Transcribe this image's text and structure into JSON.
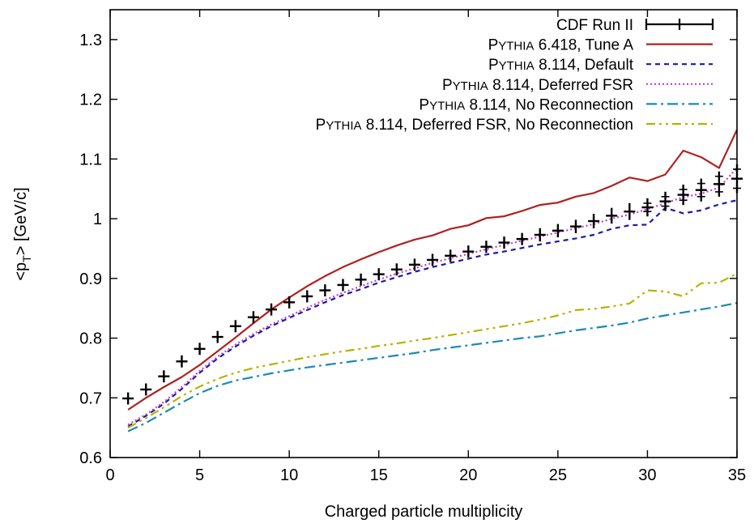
{
  "chart_data": {
    "type": "line",
    "title": "",
    "xlabel": "Charged particle multiplicity",
    "ylabel": {
      "prefix": "<p",
      "sub": "T",
      "suffix": "> [GeV/c]"
    },
    "xlim": [
      0,
      35
    ],
    "ylim": [
      0.6,
      1.35
    ],
    "x_ticks": [
      0,
      5,
      10,
      15,
      20,
      25,
      30,
      35
    ],
    "x_tick_labels": [
      "0",
      "5",
      "10",
      "15",
      "20",
      "25",
      "30",
      "35"
    ],
    "y_ticks": [
      0.6,
      0.7,
      0.8,
      0.9,
      1.0,
      1.1,
      1.2,
      1.3
    ],
    "y_tick_labels": [
      "0.6",
      "0.7",
      "0.8",
      "0.9",
      "1",
      "1.1",
      "1.2",
      "1.3"
    ],
    "grid": false,
    "legend_position": "top-right",
    "x": [
      1,
      2,
      3,
      4,
      5,
      6,
      7,
      8,
      9,
      10,
      11,
      12,
      13,
      14,
      15,
      16,
      17,
      18,
      19,
      20,
      21,
      22,
      23,
      24,
      25,
      26,
      27,
      28,
      29,
      30,
      31,
      32,
      33,
      34,
      35
    ],
    "data_series": {
      "name": "CDF Run II",
      "legend_text": "CDF Run II",
      "color": "#000000",
      "y": [
        0.699,
        0.714,
        0.736,
        0.761,
        0.782,
        0.802,
        0.82,
        0.835,
        0.848,
        0.86,
        0.87,
        0.88,
        0.889,
        0.898,
        0.907,
        0.915,
        0.923,
        0.931,
        0.938,
        0.945,
        0.953,
        0.96,
        0.966,
        0.973,
        0.98,
        0.987,
        0.996,
        1.005,
        1.012,
        1.019,
        1.029,
        1.04,
        1.048,
        1.058,
        1.067
      ],
      "yerr": [
        0.002,
        0.002,
        0.002,
        0.002,
        0.002,
        0.002,
        0.002,
        0.002,
        0.002,
        0.002,
        0.002,
        0.002,
        0.002,
        0.002,
        0.002,
        0.002,
        0.002,
        0.002,
        0.002,
        0.002,
        0.002,
        0.002,
        0.002,
        0.003,
        0.003,
        0.003,
        0.004,
        0.005,
        0.006,
        0.007,
        0.008,
        0.009,
        0.011,
        0.013,
        0.016
      ]
    },
    "series": [
      {
        "name": "Pythia 6.418, Tune A",
        "legend": {
          "sc_first": "P",
          "sc_rest": "YTHIA",
          "rest": " 6.418, Tune A"
        },
        "color": "#b02020",
        "style": "solid",
        "y": [
          0.68,
          0.7,
          0.718,
          0.735,
          0.755,
          0.778,
          0.801,
          0.825,
          0.848,
          0.868,
          0.887,
          0.904,
          0.919,
          0.932,
          0.944,
          0.955,
          0.965,
          0.972,
          0.983,
          0.989,
          1.001,
          1.004,
          1.013,
          1.023,
          1.027,
          1.037,
          1.043,
          1.055,
          1.069,
          1.063,
          1.074,
          1.114,
          1.103,
          1.085,
          1.149
        ]
      },
      {
        "name": "Pythia 8.114, Default",
        "legend": {
          "sc_first": "P",
          "sc_rest": "YTHIA",
          "rest": " 8.114, Default"
        },
        "color": "#1a1aaa",
        "style": "dashed",
        "y": [
          0.652,
          0.67,
          0.69,
          0.715,
          0.742,
          0.766,
          0.786,
          0.804,
          0.82,
          0.834,
          0.847,
          0.86,
          0.872,
          0.882,
          0.893,
          0.902,
          0.911,
          0.919,
          0.926,
          0.933,
          0.94,
          0.945,
          0.951,
          0.957,
          0.962,
          0.967,
          0.973,
          0.983,
          0.989,
          0.99,
          1.018,
          1.009,
          1.014,
          1.024,
          1.031
        ]
      },
      {
        "name": "Pythia 8.114, Deferred FSR",
        "legend": {
          "sc_first": "P",
          "sc_rest": "YTHIA",
          "rest": " 8.114, Deferred FSR"
        },
        "color": "#c040c8",
        "style": "dotted",
        "y": [
          0.655,
          0.672,
          0.693,
          0.718,
          0.745,
          0.769,
          0.789,
          0.807,
          0.823,
          0.837,
          0.851,
          0.864,
          0.876,
          0.887,
          0.898,
          0.908,
          0.917,
          0.926,
          0.934,
          0.941,
          0.949,
          0.956,
          0.963,
          0.97,
          0.977,
          0.984,
          0.991,
          1.0,
          1.007,
          1.016,
          1.026,
          1.036,
          1.042,
          1.052,
          1.085
        ]
      },
      {
        "name": "Pythia 8.114, No Reconnection",
        "legend": {
          "sc_first": "P",
          "sc_rest": "YTHIA",
          "rest": " 8.114, No Reconnection"
        },
        "color": "#1a8ab4",
        "style": "dashdot",
        "y": [
          0.644,
          0.658,
          0.675,
          0.692,
          0.708,
          0.72,
          0.729,
          0.735,
          0.741,
          0.746,
          0.751,
          0.755,
          0.759,
          0.763,
          0.767,
          0.771,
          0.775,
          0.78,
          0.784,
          0.788,
          0.792,
          0.796,
          0.8,
          0.803,
          0.808,
          0.813,
          0.817,
          0.821,
          0.826,
          0.833,
          0.838,
          0.843,
          0.848,
          0.853,
          0.859
        ]
      },
      {
        "name": "Pythia 8.114, Deferred FSR, No Reconnection",
        "legend": {
          "sc_first": "P",
          "sc_rest": "YTHIA",
          "rest": " 8.114, Deferred FSR, No Reconnection"
        },
        "color": "#b4b400",
        "style": "dashdotdot",
        "y": [
          0.65,
          0.666,
          0.684,
          0.703,
          0.719,
          0.732,
          0.742,
          0.75,
          0.756,
          0.762,
          0.768,
          0.773,
          0.778,
          0.782,
          0.787,
          0.791,
          0.796,
          0.8,
          0.805,
          0.81,
          0.815,
          0.82,
          0.825,
          0.831,
          0.838,
          0.847,
          0.849,
          0.853,
          0.858,
          0.88,
          0.878,
          0.87,
          0.892,
          0.893,
          0.908
        ]
      }
    ]
  }
}
